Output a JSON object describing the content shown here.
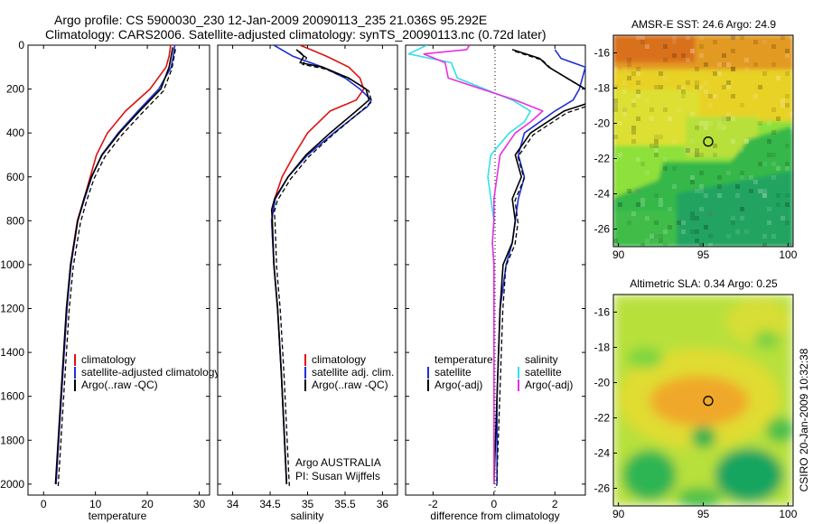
{
  "figure": {
    "title_line1": "Argo profile: CS 5900030_230 12-Jan-2009 20090113_235 21.036S 95.292E",
    "title_line2": "Climatology: CARS2006. Satellite-adjusted climatology: synTS_20090113.nc (0.72d later)",
    "side_text": "CSIRO 20-Jan-2009 10:32:38",
    "credit_line1": "Argo AUSTRALIA",
    "credit_line2": "PI: Susan Wijffels"
  },
  "colors": {
    "climatology": "#dd1111",
    "satellite": "#1f2fd6",
    "argo": "#000000",
    "sat_salinity": "#33e0e8",
    "argo_salinity": "#e830e0"
  },
  "chart_data": [
    {
      "type": "line",
      "xlabel": "temperature",
      "ylim": [
        2050,
        0
      ],
      "xlim": [
        -3,
        32
      ],
      "xticks": [
        0,
        10,
        20,
        30
      ],
      "yticks": [
        0,
        200,
        400,
        600,
        800,
        1000,
        1200,
        1400,
        1600,
        1800,
        2000
      ],
      "legend": [
        "climatology",
        "satellite-adjusted climatology",
        "Argo(..raw -QC)"
      ],
      "series": [
        {
          "name": "climatology",
          "y": [
            0,
            50,
            100,
            200,
            300,
            400,
            500,
            600,
            700,
            800,
            1000,
            1200,
            1500,
            2000
          ],
          "x": [
            24.5,
            24.2,
            23.6,
            20.5,
            15.8,
            12.3,
            10.2,
            9.0,
            7.8,
            6.5,
            5.2,
            4.5,
            3.7,
            2.4
          ]
        },
        {
          "name": "satellite-adjusted climatology",
          "y": [
            0,
            50,
            100,
            200,
            300,
            400,
            500,
            600,
            700,
            800,
            1000,
            1200,
            1500,
            2000
          ],
          "x": [
            25.3,
            25.0,
            24.6,
            22.2,
            18.2,
            14.4,
            11.2,
            9.3,
            7.9,
            6.6,
            5.3,
            4.5,
            3.7,
            2.4
          ]
        },
        {
          "name": "Argo(..raw -QC)",
          "y": [
            10,
            50,
            100,
            200,
            300,
            400,
            500,
            600,
            700,
            800,
            1000,
            1200,
            1500,
            2000
          ],
          "x": [
            24.9,
            24.6,
            24.2,
            22.6,
            18.5,
            14.6,
            11.3,
            9.2,
            7.8,
            6.6,
            5.2,
            4.4,
            3.6,
            2.3
          ]
        }
      ]
    },
    {
      "type": "line",
      "xlabel": "salinity",
      "ylim": [
        2050,
        0
      ],
      "xlim": [
        33.8,
        36.2
      ],
      "xticks": [
        34,
        34.5,
        35,
        35.5,
        36
      ],
      "xticklabels": [
        "34",
        "34.5",
        "35",
        "35.5",
        "36"
      ],
      "legend": [
        "climatology",
        "satellite adj. clim.",
        "Argo(..raw -QC)"
      ],
      "series": [
        {
          "name": "climatology",
          "y": [
            0,
            50,
            100,
            150,
            200,
            250,
            300,
            400,
            500,
            600,
            700,
            800,
            1000,
            1200,
            1500,
            2000
          ],
          "x": [
            34.9,
            35.25,
            35.55,
            35.7,
            35.75,
            35.65,
            35.3,
            35.0,
            34.82,
            34.66,
            34.56,
            34.52,
            34.55,
            34.6,
            34.65,
            34.72
          ]
        },
        {
          "name": "satellite adj. clim.",
          "y": [
            0,
            50,
            100,
            150,
            200,
            250,
            280,
            300,
            400,
            500,
            600,
            700,
            800,
            1000,
            1200,
            1500,
            2000
          ],
          "x": [
            34.55,
            34.8,
            35.2,
            35.5,
            35.7,
            35.85,
            35.8,
            35.72,
            35.35,
            35.0,
            34.74,
            34.57,
            34.52,
            34.55,
            34.6,
            34.65,
            34.72
          ]
        },
        {
          "name": "Argo(..raw -QC)",
          "y": [
            20,
            50,
            80,
            100,
            150,
            200,
            250,
            300,
            400,
            500,
            600,
            700,
            750,
            800,
            1000,
            1200,
            1500,
            2000
          ],
          "x": [
            34.85,
            34.95,
            34.9,
            35.2,
            35.55,
            35.78,
            35.82,
            35.65,
            35.3,
            34.98,
            34.74,
            34.56,
            34.52,
            34.53,
            34.55,
            34.6,
            34.65,
            34.72
          ]
        }
      ]
    },
    {
      "type": "line",
      "xlabel": "difference from climatology",
      "ylim": [
        2050,
        0
      ],
      "xlim": [
        -2.9,
        3.0
      ],
      "xticks": [
        -2,
        0,
        2
      ],
      "legend_headers": [
        "temperature",
        "salinity"
      ],
      "legend": [
        "satellite",
        "Argo(-adj)",
        "satellite",
        "Argo(-adj)"
      ],
      "series": [
        {
          "name": "temperature satellite",
          "y": [
            20,
            60,
            100,
            200,
            250,
            300,
            400,
            500,
            600,
            700,
            800,
            900,
            1000,
            1200,
            1600,
            2000
          ],
          "x": [
            2.0,
            2.2,
            3.0,
            2.8,
            2.6,
            2.0,
            1.0,
            0.8,
            1.0,
            0.8,
            0.7,
            0.6,
            0.4,
            0.2,
            0.1,
            0.1
          ]
        },
        {
          "name": "temperature Argo(-adj)",
          "y": [
            20,
            60,
            100,
            200,
            250,
            300,
            400,
            500,
            600,
            700,
            800,
            900,
            1000,
            1200,
            1600,
            2000
          ],
          "x": [
            0.6,
            1.5,
            1.8,
            3.0,
            3.4,
            2.3,
            1.2,
            0.7,
            0.9,
            0.6,
            0.7,
            0.6,
            0.3,
            0.2,
            0.1,
            0.0
          ]
        },
        {
          "name": "salinity satellite",
          "y": [
            0,
            40,
            80,
            150,
            250,
            300,
            350,
            400,
            500,
            600,
            700,
            800,
            900,
            1000,
            1200,
            1600,
            2000
          ],
          "x": [
            -2.2,
            -2.8,
            -1.4,
            -1.2,
            0.6,
            1.2,
            1.0,
            0.5,
            -0.1,
            -0.2,
            -0.1,
            0.0,
            -0.05,
            0.0,
            0.0,
            0.0,
            0.0
          ]
        },
        {
          "name": "salinity Argo(-adj)",
          "y": [
            0,
            20,
            40,
            80,
            150,
            250,
            300,
            350,
            400,
            500,
            600,
            700,
            800,
            900,
            1000,
            1200,
            1600,
            2000
          ],
          "x": [
            -0.8,
            -0.9,
            -2.3,
            -1.6,
            -1.5,
            0.7,
            1.6,
            1.2,
            0.7,
            0.2,
            0.1,
            0.0,
            0.0,
            -0.05,
            0.0,
            0.0,
            0.0,
            0.0
          ]
        }
      ]
    },
    {
      "type": "heatmap",
      "title": "AMSR-E SST: 24.6  Argo: 24.9",
      "xlim": [
        89.7,
        100.3
      ],
      "ylim": [
        -27,
        -15
      ],
      "xticks": [
        90,
        95,
        100
      ],
      "yticks": [
        -16,
        -18,
        -20,
        -22,
        -24,
        -26
      ],
      "marker": {
        "lon": 95.292,
        "lat": -21.036
      }
    },
    {
      "type": "heatmap",
      "title": "Altimetric SLA: 0.34  Argo: 0.25",
      "xlim": [
        89.7,
        100.3
      ],
      "ylim": [
        -27,
        -15
      ],
      "xticks": [
        90,
        95,
        100
      ],
      "yticks": [
        -16,
        -18,
        -20,
        -22,
        -24,
        -26
      ],
      "marker": {
        "lon": 95.292,
        "lat": -21.036
      }
    }
  ]
}
